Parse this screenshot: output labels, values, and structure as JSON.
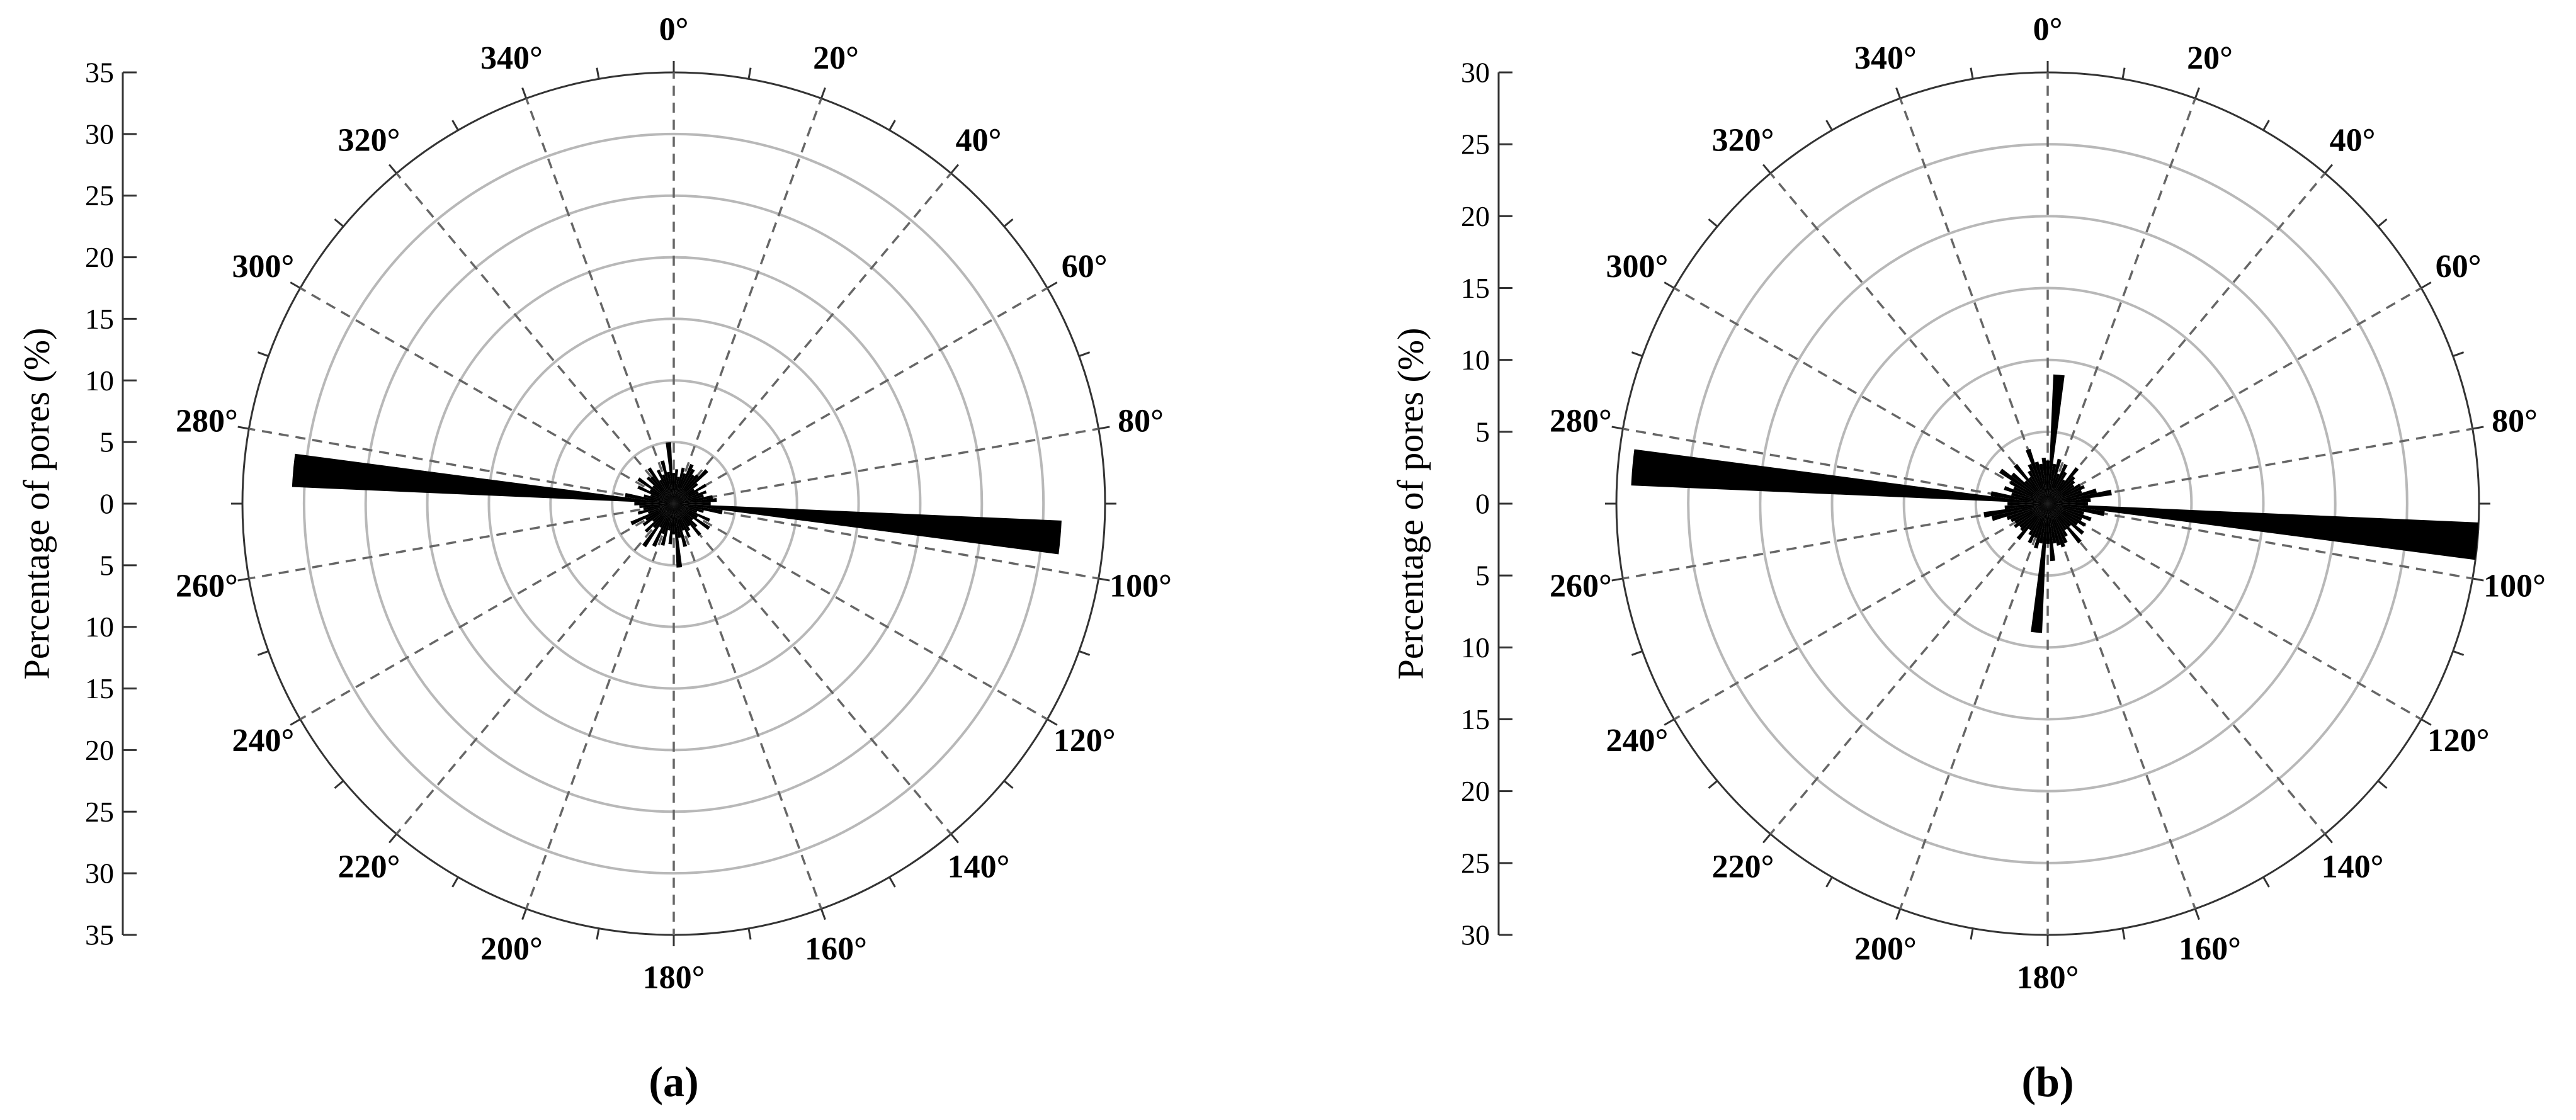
{
  "chart_data": [
    {
      "type": "rose",
      "panel_label": "(a)",
      "ylabel": "Percentage of pores (%)",
      "radial_max": 35,
      "radial_ticks": [
        35,
        30,
        25,
        20,
        15,
        10,
        5,
        0,
        5,
        10,
        15,
        20,
        25,
        30,
        35
      ],
      "ring_values": [
        5,
        10,
        15,
        20,
        25,
        30,
        35
      ],
      "angle_labels": [
        "0°",
        "20°",
        "40°",
        "60°",
        "80°",
        "100°",
        "120°",
        "140°",
        "160°",
        "180°",
        "200°",
        "220°",
        "240°",
        "260°",
        "280°",
        "300°",
        "320°",
        "340°"
      ],
      "bin_width_deg": 5,
      "bins": [
        {
          "angle": 0,
          "value": 2.5
        },
        {
          "angle": 5,
          "value": 2.8
        },
        {
          "angle": 10,
          "value": 2.2
        },
        {
          "angle": 15,
          "value": 3.0
        },
        {
          "angle": 20,
          "value": 2.6
        },
        {
          "angle": 25,
          "value": 3.5
        },
        {
          "angle": 30,
          "value": 3.2
        },
        {
          "angle": 35,
          "value": 2.8
        },
        {
          "angle": 40,
          "value": 3.0
        },
        {
          "angle": 45,
          "value": 3.8
        },
        {
          "angle": 50,
          "value": 2.5
        },
        {
          "angle": 55,
          "value": 2.0
        },
        {
          "angle": 60,
          "value": 3.0
        },
        {
          "angle": 65,
          "value": 2.2
        },
        {
          "angle": 70,
          "value": 2.8
        },
        {
          "angle": 75,
          "value": 2.5
        },
        {
          "angle": 80,
          "value": 3.2
        },
        {
          "angle": 85,
          "value": 3.5
        },
        {
          "angle": 90,
          "value": 3.0
        },
        {
          "angle": 95,
          "value": 31.5
        },
        {
          "angle": 100,
          "value": 4.0
        },
        {
          "angle": 105,
          "value": 2.5
        },
        {
          "angle": 110,
          "value": 2.0
        },
        {
          "angle": 115,
          "value": 3.2
        },
        {
          "angle": 120,
          "value": 2.2
        },
        {
          "angle": 125,
          "value": 3.5
        },
        {
          "angle": 130,
          "value": 2.0
        },
        {
          "angle": 135,
          "value": 2.6
        },
        {
          "angle": 140,
          "value": 3.3
        },
        {
          "angle": 145,
          "value": 2.2
        },
        {
          "angle": 150,
          "value": 2.5
        },
        {
          "angle": 155,
          "value": 3.0
        },
        {
          "angle": 160,
          "value": 2.3
        },
        {
          "angle": 165,
          "value": 3.6
        },
        {
          "angle": 170,
          "value": 2.8
        },
        {
          "angle": 175,
          "value": 5.2
        },
        {
          "angle": 180,
          "value": 2.5
        },
        {
          "angle": 185,
          "value": 3.3
        },
        {
          "angle": 190,
          "value": 2.2
        },
        {
          "angle": 195,
          "value": 3.5
        },
        {
          "angle": 200,
          "value": 2.6
        },
        {
          "angle": 205,
          "value": 3.8
        },
        {
          "angle": 210,
          "value": 2.2
        },
        {
          "angle": 215,
          "value": 4.2
        },
        {
          "angle": 220,
          "value": 2.5
        },
        {
          "angle": 225,
          "value": 3.2
        },
        {
          "angle": 230,
          "value": 2.2
        },
        {
          "angle": 235,
          "value": 3.0
        },
        {
          "angle": 240,
          "value": 2.6
        },
        {
          "angle": 245,
          "value": 3.8
        },
        {
          "angle": 250,
          "value": 2.2
        },
        {
          "angle": 255,
          "value": 3.0
        },
        {
          "angle": 260,
          "value": 2.5
        },
        {
          "angle": 265,
          "value": 2.8
        },
        {
          "angle": 270,
          "value": 3.2
        },
        {
          "angle": 275,
          "value": 31.0
        },
        {
          "angle": 280,
          "value": 4.0
        },
        {
          "angle": 285,
          "value": 2.5
        },
        {
          "angle": 290,
          "value": 2.0
        },
        {
          "angle": 295,
          "value": 3.2
        },
        {
          "angle": 300,
          "value": 2.2
        },
        {
          "angle": 305,
          "value": 3.5
        },
        {
          "angle": 310,
          "value": 2.2
        },
        {
          "angle": 315,
          "value": 3.0
        },
        {
          "angle": 320,
          "value": 2.8
        },
        {
          "angle": 325,
          "value": 3.5
        },
        {
          "angle": 330,
          "value": 2.2
        },
        {
          "angle": 335,
          "value": 3.0
        },
        {
          "angle": 340,
          "value": 2.5
        },
        {
          "angle": 345,
          "value": 3.6
        },
        {
          "angle": 350,
          "value": 2.6
        },
        {
          "angle": 355,
          "value": 5.0
        }
      ]
    },
    {
      "type": "rose",
      "panel_label": "(b)",
      "ylabel": "Percentage of pores (%)",
      "radial_max": 30,
      "radial_ticks": [
        30,
        25,
        20,
        15,
        10,
        5,
        0,
        5,
        10,
        15,
        20,
        25,
        30
      ],
      "ring_values": [
        5,
        10,
        15,
        20,
        25,
        30
      ],
      "angle_labels": [
        "0°",
        "20°",
        "40°",
        "60°",
        "80°",
        "100°",
        "120°",
        "140°",
        "160°",
        "180°",
        "200°",
        "220°",
        "240°",
        "260°",
        "280°",
        "300°",
        "320°",
        "340°"
      ],
      "bin_width_deg": 5,
      "bins": [
        {
          "angle": 0,
          "value": 3.0
        },
        {
          "angle": 5,
          "value": 9.0
        },
        {
          "angle": 10,
          "value": 2.8
        },
        {
          "angle": 15,
          "value": 3.2
        },
        {
          "angle": 20,
          "value": 2.2
        },
        {
          "angle": 25,
          "value": 3.0
        },
        {
          "angle": 30,
          "value": 2.5
        },
        {
          "angle": 35,
          "value": 2.0
        },
        {
          "angle": 40,
          "value": 3.2
        },
        {
          "angle": 45,
          "value": 2.6
        },
        {
          "angle": 50,
          "value": 2.4
        },
        {
          "angle": 55,
          "value": 2.2
        },
        {
          "angle": 60,
          "value": 2.6
        },
        {
          "angle": 65,
          "value": 2.8
        },
        {
          "angle": 70,
          "value": 2.5
        },
        {
          "angle": 75,
          "value": 3.5
        },
        {
          "angle": 80,
          "value": 4.5
        },
        {
          "angle": 85,
          "value": 3.0
        },
        {
          "angle": 90,
          "value": 2.8
        },
        {
          "angle": 95,
          "value": 30.0
        },
        {
          "angle": 100,
          "value": 4.0
        },
        {
          "angle": 105,
          "value": 2.6
        },
        {
          "angle": 110,
          "value": 3.2
        },
        {
          "angle": 115,
          "value": 2.6
        },
        {
          "angle": 120,
          "value": 3.0
        },
        {
          "angle": 125,
          "value": 2.5
        },
        {
          "angle": 130,
          "value": 3.2
        },
        {
          "angle": 135,
          "value": 2.2
        },
        {
          "angle": 140,
          "value": 3.5
        },
        {
          "angle": 145,
          "value": 2.2
        },
        {
          "angle": 150,
          "value": 2.6
        },
        {
          "angle": 155,
          "value": 3.0
        },
        {
          "angle": 160,
          "value": 3.2
        },
        {
          "angle": 165,
          "value": 3.0
        },
        {
          "angle": 170,
          "value": 2.8
        },
        {
          "angle": 175,
          "value": 4.0
        },
        {
          "angle": 180,
          "value": 2.8
        },
        {
          "angle": 185,
          "value": 9.0
        },
        {
          "angle": 190,
          "value": 2.8
        },
        {
          "angle": 195,
          "value": 3.2
        },
        {
          "angle": 200,
          "value": 2.5
        },
        {
          "angle": 205,
          "value": 3.0
        },
        {
          "angle": 210,
          "value": 2.5
        },
        {
          "angle": 215,
          "value": 2.2
        },
        {
          "angle": 220,
          "value": 3.2
        },
        {
          "angle": 225,
          "value": 2.6
        },
        {
          "angle": 230,
          "value": 2.5
        },
        {
          "angle": 235,
          "value": 2.8
        },
        {
          "angle": 240,
          "value": 2.6
        },
        {
          "angle": 245,
          "value": 2.8
        },
        {
          "angle": 250,
          "value": 3.0
        },
        {
          "angle": 255,
          "value": 4.0
        },
        {
          "angle": 260,
          "value": 4.5
        },
        {
          "angle": 265,
          "value": 3.0
        },
        {
          "angle": 270,
          "value": 2.8
        },
        {
          "angle": 275,
          "value": 29.0
        },
        {
          "angle": 280,
          "value": 4.0
        },
        {
          "angle": 285,
          "value": 2.6
        },
        {
          "angle": 290,
          "value": 3.2
        },
        {
          "angle": 295,
          "value": 2.6
        },
        {
          "angle": 300,
          "value": 3.0
        },
        {
          "angle": 305,
          "value": 4.0
        },
        {
          "angle": 310,
          "value": 3.2
        },
        {
          "angle": 315,
          "value": 2.2
        },
        {
          "angle": 320,
          "value": 3.5
        },
        {
          "angle": 325,
          "value": 2.2
        },
        {
          "angle": 330,
          "value": 2.6
        },
        {
          "angle": 335,
          "value": 3.0
        },
        {
          "angle": 340,
          "value": 4.0
        },
        {
          "angle": 345,
          "value": 3.0
        },
        {
          "angle": 350,
          "value": 2.8
        },
        {
          "angle": 355,
          "value": 3.2
        }
      ]
    }
  ]
}
